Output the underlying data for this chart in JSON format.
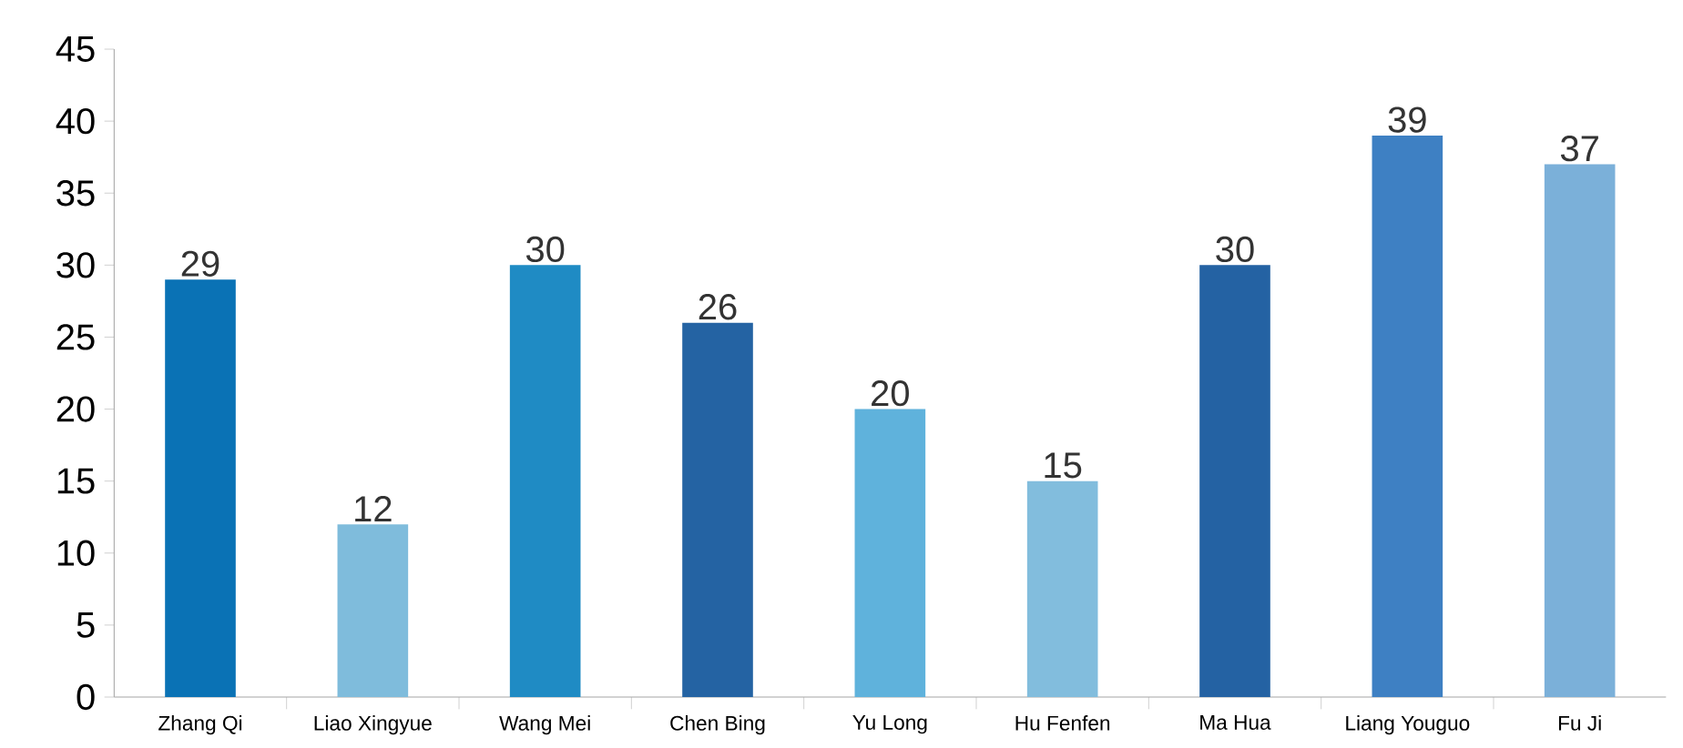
{
  "chart_data": {
    "type": "bar",
    "categories": [
      "Zhang Qi",
      "Liao Xingyue",
      "Wang Mei",
      "Chen Bing",
      "Yu Long",
      "Hu Fenfen",
      "Ma Hua",
      "Liang Youguo",
      "Fu Ji"
    ],
    "values": [
      29,
      12,
      30,
      26,
      20,
      15,
      30,
      39,
      37
    ],
    "colors": [
      "#0a72b5",
      "#7fbcdc",
      "#1f8bc4",
      "#2463a3",
      "#5fb2dc",
      "#82bddd",
      "#2462a3",
      "#3e80c3",
      "#7bb0d9"
    ],
    "ylim": [
      0,
      45
    ],
    "yticks": [
      0,
      5,
      10,
      15,
      20,
      25,
      30,
      35,
      40,
      45
    ],
    "data_labels": true
  }
}
